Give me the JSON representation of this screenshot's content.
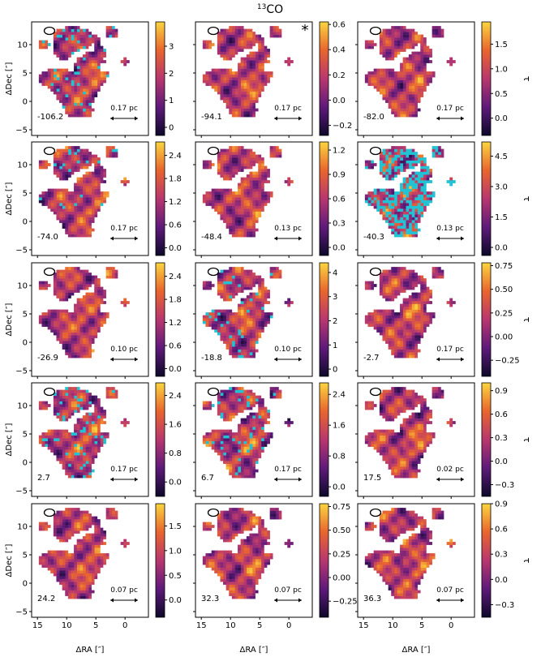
{
  "figure": {
    "title_mol": "CO",
    "title_sup": "13",
    "x_label": "ΔRA [″]",
    "y_label": "ΔDec [″]",
    "cbar_label": "τ",
    "beam_label": "beam-ellipse",
    "star_marker": "*"
  },
  "colors": {
    "cmap_low": "#0d0829",
    "cmap_mid1": "#5e1a7a",
    "cmap_mid2": "#b8376f",
    "cmap_mid3": "#e9652e",
    "cmap_high": "#fbd53f",
    "flag": "#20c3d3",
    "frame": "#000000"
  },
  "chart_data": {
    "type": "heatmap",
    "x_ticks": [
      "15",
      "10",
      "5",
      "0"
    ],
    "y_ticks": [
      "−5",
      "0",
      "5",
      "10"
    ],
    "xlim": [
      16,
      -4
    ],
    "ylim": [
      -6,
      14
    ],
    "panels": [
      {
        "velocity": "-106.2",
        "scale": "0.17 pc",
        "cbar_ticks": [
          "0",
          "1",
          "2",
          "3"
        ],
        "cbar_range": [
          -0.3,
          3.9
        ],
        "flag": 0.1,
        "star": false
      },
      {
        "velocity": "-94.1",
        "scale": "0.17 pc",
        "cbar_ticks": [
          "−0.2",
          "0.0",
          "0.2",
          "0.4",
          "0.6"
        ],
        "cbar_range": [
          -0.28,
          0.62
        ],
        "flag": 0.0,
        "star": true
      },
      {
        "velocity": "-82.0",
        "scale": "0.17 pc",
        "cbar_ticks": [
          "0.0",
          "0.5",
          "1.0",
          "1.5"
        ],
        "cbar_range": [
          -0.35,
          1.95
        ],
        "flag": 0.0,
        "star": false
      },
      {
        "velocity": "-74.0",
        "scale": "0.17 pc",
        "cbar_ticks": [
          "0.0",
          "0.6",
          "1.2",
          "1.8",
          "2.4"
        ],
        "cbar_range": [
          -0.2,
          2.75
        ],
        "flag": 0.06,
        "star": false
      },
      {
        "velocity": "-48.4",
        "scale": "0.13 pc",
        "cbar_ticks": [
          "0.0",
          "0.3",
          "0.6",
          "0.9",
          "1.2"
        ],
        "cbar_range": [
          -0.1,
          1.3
        ],
        "flag": 0.0,
        "star": false
      },
      {
        "velocity": "-40.3",
        "scale": "0.13 pc",
        "cbar_ticks": [
          "0.0",
          "1.5",
          "3.0",
          "4.5"
        ],
        "cbar_range": [
          -0.4,
          5.2
        ],
        "flag": 0.45,
        "star": false
      },
      {
        "velocity": "-26.9",
        "scale": "0.10 pc",
        "cbar_ticks": [
          "0.0",
          "0.6",
          "1.2",
          "1.8",
          "2.4"
        ],
        "cbar_range": [
          -0.2,
          2.75
        ],
        "flag": 0.0,
        "star": false
      },
      {
        "velocity": "-18.8",
        "scale": "0.10 pc",
        "cbar_ticks": [
          "0",
          "1",
          "2",
          "3",
          "4"
        ],
        "cbar_range": [
          -0.3,
          4.4
        ],
        "flag": 0.06,
        "star": false
      },
      {
        "velocity": "-2.7",
        "scale": "0.17 pc",
        "cbar_ticks": [
          "−0.25",
          "0.00",
          "0.25",
          "0.50",
          "0.75"
        ],
        "cbar_range": [
          -0.42,
          0.78
        ],
        "flag": 0.0,
        "star": false
      },
      {
        "velocity": "2.7",
        "scale": "0.17 pc",
        "cbar_ticks": [
          "0.0",
          "0.8",
          "1.6",
          "2.4"
        ],
        "cbar_range": [
          -0.4,
          2.75
        ],
        "flag": 0.1,
        "star": false
      },
      {
        "velocity": "6.7",
        "scale": "0.17 pc",
        "cbar_ticks": [
          "0.0",
          "0.8",
          "1.6",
          "2.4"
        ],
        "cbar_range": [
          -0.25,
          2.7
        ],
        "flag": 0.08,
        "star": false
      },
      {
        "velocity": "17.5",
        "scale": "0.02 pc",
        "cbar_ticks": [
          "−0.3",
          "0.0",
          "0.3",
          "0.6",
          "0.9"
        ],
        "cbar_range": [
          -0.45,
          1.0
        ],
        "flag": 0.0,
        "star": false
      },
      {
        "velocity": "24.2",
        "scale": "0.07 pc",
        "cbar_ticks": [
          "0.0",
          "0.5",
          "1.0",
          "1.5"
        ],
        "cbar_range": [
          -0.35,
          1.95
        ],
        "flag": 0.0,
        "star": false
      },
      {
        "velocity": "32.3",
        "scale": "0.07 pc",
        "cbar_ticks": [
          "−0.25",
          "0.00",
          "0.25",
          "0.50",
          "0.75"
        ],
        "cbar_range": [
          -0.42,
          0.78
        ],
        "flag": 0.0,
        "star": false
      },
      {
        "velocity": "36.3",
        "scale": "0.07 pc",
        "cbar_ticks": [
          "−0.3",
          "0.0",
          "0.3",
          "0.6",
          "0.9"
        ],
        "cbar_range": [
          -0.45,
          0.9
        ],
        "flag": 0.0,
        "star": false
      }
    ]
  }
}
